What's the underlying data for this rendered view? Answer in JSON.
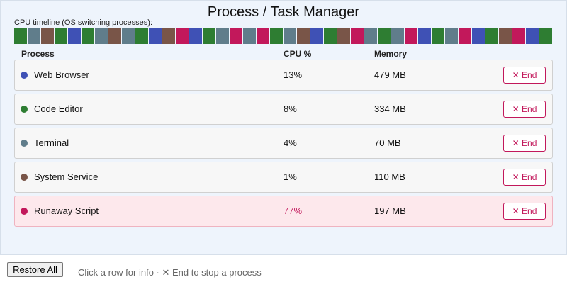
{
  "header": {
    "title": "Process / Task Manager",
    "timeline_label": "CPU timeline (OS switching processes):"
  },
  "timeline": [
    "#2e7d32",
    "#607d8b",
    "#795548",
    "#2e7d32",
    "#3f51b5",
    "#2e7d32",
    "#607d8b",
    "#795548",
    "#607d8b",
    "#2e7d32",
    "#3f51b5",
    "#795548",
    "#c2185b",
    "#3f51b5",
    "#2e7d32",
    "#607d8b",
    "#c2185b",
    "#607d8b",
    "#c2185b",
    "#2e7d32",
    "#607d8b",
    "#795548",
    "#3f51b5",
    "#2e7d32",
    "#795548",
    "#c2185b",
    "#607d8b",
    "#2e7d32",
    "#607d8b",
    "#c2185b",
    "#3f51b5",
    "#2e7d32",
    "#607d8b",
    "#c2185b",
    "#3f51b5",
    "#2e7d32",
    "#795548",
    "#c2185b",
    "#3f51b5",
    "#2e7d32"
  ],
  "table": {
    "columns": [
      "Process",
      "CPU %",
      "Memory"
    ],
    "rows": [
      {
        "name": "Web Browser",
        "color": "#3f51b5",
        "cpu": "13%",
        "memory": "479 MB",
        "button": "✕ End",
        "alert": false
      },
      {
        "name": "Code Editor",
        "color": "#2e7d32",
        "cpu": "8%",
        "memory": "334 MB",
        "button": "✕ End",
        "alert": false
      },
      {
        "name": "Terminal",
        "color": "#607d8b",
        "cpu": "4%",
        "memory": "70 MB",
        "button": "✕ End",
        "alert": false
      },
      {
        "name": "System Service",
        "color": "#795548",
        "cpu": "1%",
        "memory": "110 MB",
        "button": "✕ End",
        "alert": false
      },
      {
        "name": "Runaway Script",
        "color": "#c2185b",
        "cpu": "77%",
        "memory": "197 MB",
        "button": "✕ End",
        "alert": true
      }
    ]
  },
  "footer": {
    "button": "Restore All",
    "hint": "Click a row for info · ✕ End to stop a process"
  }
}
